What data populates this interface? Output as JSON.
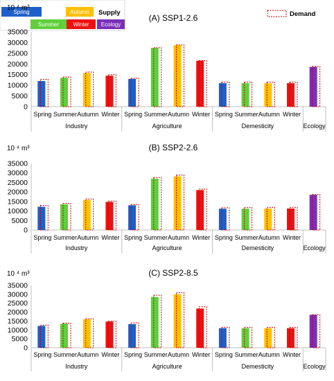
{
  "legend": {
    "title": "Supply",
    "items": [
      {
        "label": "Spring",
        "color": "#1f5fc9"
      },
      {
        "label": "Autumn",
        "color": "#ffc000"
      },
      {
        "label": "Summer",
        "color": "#5fcf3a"
      },
      {
        "label": "Winter",
        "color": "#ee1111"
      },
      {
        "label": "Ecology",
        "color": "#7a2fb8"
      }
    ],
    "demand_label": "Demand",
    "demand_color": "#c00000"
  },
  "chart_data": [
    {
      "type": "bar",
      "title": "(A) SSP1-2.6",
      "y_unit": "10 ⁴ m³",
      "ylim": [
        0,
        35000
      ],
      "yticks": [
        0,
        5000,
        10000,
        15000,
        20000,
        25000,
        30000,
        35000
      ],
      "groups": [
        "Industry",
        "Agriculture",
        "Demesticity",
        "Ecology"
      ],
      "categories": [
        {
          "group": "Industry",
          "label": "Spring",
          "season": "Spring",
          "supply": 12000,
          "demand": 12800
        },
        {
          "group": "Industry",
          "label": "Summer",
          "season": "Summer",
          "supply": 13500,
          "demand": 13900
        },
        {
          "group": "Industry",
          "label": "Autumn",
          "season": "Autumn",
          "supply": 15800,
          "demand": 16200
        },
        {
          "group": "Industry",
          "label": "Winter",
          "season": "Winter",
          "supply": 14500,
          "demand": 15000
        },
        {
          "group": "Agriculture",
          "label": "Spring",
          "season": "Spring",
          "supply": 13000,
          "demand": 13300
        },
        {
          "group": "Agriculture",
          "label": "Summer",
          "season": "Summer",
          "supply": 27500,
          "demand": 27600
        },
        {
          "group": "Agriculture",
          "label": "Autumn",
          "season": "Autumn",
          "supply": 28800,
          "demand": 28900
        },
        {
          "group": "Agriculture",
          "label": "Winter",
          "season": "Winter",
          "supply": 21500,
          "demand": 21600
        },
        {
          "group": "Demesticity",
          "label": "Spring",
          "season": "Spring",
          "supply": 11000,
          "demand": 11500
        },
        {
          "group": "Demesticity",
          "label": "Summer",
          "season": "Summer",
          "supply": 11000,
          "demand": 11500
        },
        {
          "group": "Demesticity",
          "label": "Autumn",
          "season": "Autumn",
          "supply": 11000,
          "demand": 11500
        },
        {
          "group": "Demesticity",
          "label": "Winter",
          "season": "Winter",
          "supply": 11000,
          "demand": 11500
        },
        {
          "group": "Ecology",
          "label": "",
          "season": "Ecology",
          "supply": 18600,
          "demand": 18800
        }
      ]
    },
    {
      "type": "bar",
      "title": "(B) SSP2-2.6",
      "y_unit": "10 ⁴ m³",
      "ylim": [
        0,
        35000
      ],
      "yticks": [
        0,
        5000,
        10000,
        15000,
        20000,
        25000,
        30000,
        35000
      ],
      "groups": [
        "Industry",
        "Agriculture",
        "Demesticity",
        "Ecology"
      ],
      "categories": [
        {
          "group": "Industry",
          "label": "Spring",
          "season": "Spring",
          "supply": 12200,
          "demand": 12900
        },
        {
          "group": "Industry",
          "label": "Summer",
          "season": "Summer",
          "supply": 13500,
          "demand": 14000
        },
        {
          "group": "Industry",
          "label": "Autumn",
          "season": "Autumn",
          "supply": 15800,
          "demand": 16300
        },
        {
          "group": "Industry",
          "label": "Winter",
          "season": "Winter",
          "supply": 14800,
          "demand": 15200
        },
        {
          "group": "Agriculture",
          "label": "Spring",
          "season": "Spring",
          "supply": 13000,
          "demand": 13400
        },
        {
          "group": "Agriculture",
          "label": "Summer",
          "season": "Summer",
          "supply": 27000,
          "demand": 27600
        },
        {
          "group": "Agriculture",
          "label": "Autumn",
          "season": "Autumn",
          "supply": 28200,
          "demand": 28900
        },
        {
          "group": "Agriculture",
          "label": "Winter",
          "season": "Winter",
          "supply": 21000,
          "demand": 21500
        },
        {
          "group": "Demesticity",
          "label": "Spring",
          "season": "Spring",
          "supply": 11200,
          "demand": 11700
        },
        {
          "group": "Demesticity",
          "label": "Summer",
          "season": "Summer",
          "supply": 11200,
          "demand": 11800
        },
        {
          "group": "Demesticity",
          "label": "Autumn",
          "season": "Autumn",
          "supply": 11300,
          "demand": 11900
        },
        {
          "group": "Demesticity",
          "label": "Winter",
          "season": "Winter",
          "supply": 11300,
          "demand": 11900
        },
        {
          "group": "Ecology",
          "label": "",
          "season": "Ecology",
          "supply": 18500,
          "demand": 18700
        }
      ]
    },
    {
      "type": "bar",
      "title": "(C) SSP2-8.5",
      "y_unit": "10 ⁴ m³",
      "ylim": [
        0,
        35000
      ],
      "yticks": [
        0,
        5000,
        10000,
        15000,
        20000,
        25000,
        30000,
        35000
      ],
      "groups": [
        "Industry",
        "Agriculture",
        "Demesticity",
        "Ecology"
      ],
      "categories": [
        {
          "group": "Industry",
          "label": "Spring",
          "season": "Spring",
          "supply": 12300,
          "demand": 12700
        },
        {
          "group": "Industry",
          "label": "Summer",
          "season": "Summer",
          "supply": 13500,
          "demand": 13800
        },
        {
          "group": "Industry",
          "label": "Autumn",
          "season": "Autumn",
          "supply": 16000,
          "demand": 16300
        },
        {
          "group": "Industry",
          "label": "Winter",
          "season": "Winter",
          "supply": 14700,
          "demand": 14900
        },
        {
          "group": "Agriculture",
          "label": "Spring",
          "season": "Spring",
          "supply": 13300,
          "demand": 14000
        },
        {
          "group": "Agriculture",
          "label": "Summer",
          "season": "Summer",
          "supply": 28500,
          "demand": 29500
        },
        {
          "group": "Agriculture",
          "label": "Autumn",
          "season": "Autumn",
          "supply": 30000,
          "demand": 31000
        },
        {
          "group": "Agriculture",
          "label": "Winter",
          "season": "Winter",
          "supply": 22000,
          "demand": 23000
        },
        {
          "group": "Demesticity",
          "label": "Spring",
          "season": "Spring",
          "supply": 11000,
          "demand": 11400
        },
        {
          "group": "Demesticity",
          "label": "Summer",
          "season": "Summer",
          "supply": 11000,
          "demand": 11400
        },
        {
          "group": "Demesticity",
          "label": "Autumn",
          "season": "Autumn",
          "supply": 11000,
          "demand": 11400
        },
        {
          "group": "Demesticity",
          "label": "Winter",
          "season": "Winter",
          "supply": 11000,
          "demand": 11400
        },
        {
          "group": "Ecology",
          "label": "",
          "season": "Ecology",
          "supply": 18500,
          "demand": 18500
        }
      ]
    }
  ]
}
